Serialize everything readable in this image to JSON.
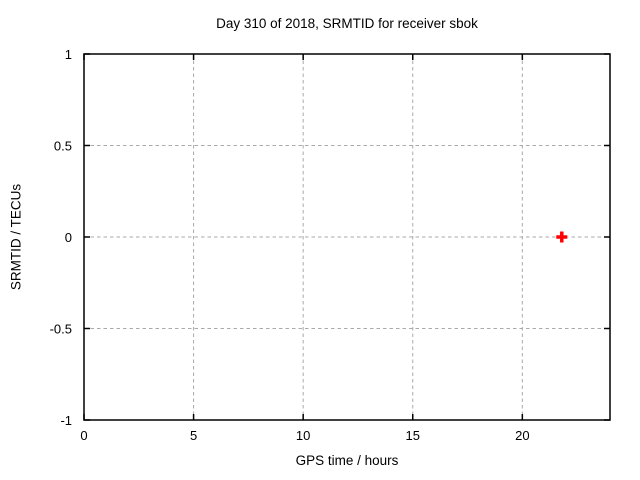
{
  "chart_data": {
    "type": "scatter",
    "title": "Day 310 of 2018, SRMTID for receiver sbok",
    "xlabel": "GPS time / hours",
    "ylabel": "SRMTID / TECUs",
    "xlim": [
      0,
      24
    ],
    "ylim": [
      -1,
      1
    ],
    "xticks": [
      0,
      5,
      10,
      15,
      20
    ],
    "xtick_labels": [
      "0",
      "5",
      "10",
      "15",
      "20"
    ],
    "yticks": [
      -1,
      -0.5,
      0,
      0.5,
      1
    ],
    "ytick_labels": [
      "-1",
      "-0.5",
      "0",
      "0.5",
      "1"
    ],
    "grid": true,
    "grid_style": "dashed",
    "legend": "none",
    "series": [
      {
        "name": "SRMTID",
        "marker": "plus",
        "color": "#ff0000",
        "points": [
          {
            "x": 21.8,
            "y": 0.0
          }
        ]
      }
    ]
  },
  "colors": {
    "background": "#ffffff",
    "border": "#000000",
    "grid": "#aaaaaa",
    "text": "#000000",
    "marker": "#ff0000"
  }
}
